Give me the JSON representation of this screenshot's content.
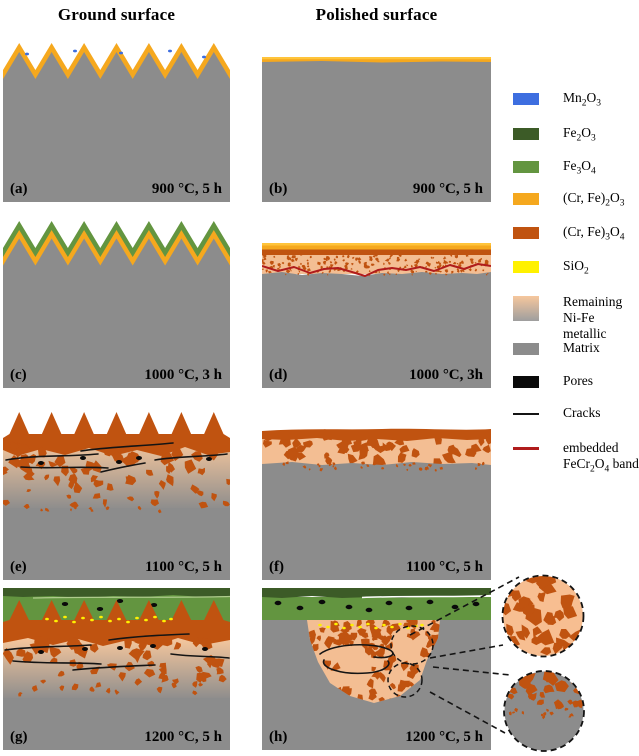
{
  "headers": {
    "left": "Ground surface",
    "right": "Polished surface"
  },
  "panels": [
    {
      "id": "a",
      "label": "(a)",
      "condition": "900 °C, 5 h"
    },
    {
      "id": "b",
      "label": "(b)",
      "condition": "900 °C, 5 h"
    },
    {
      "id": "c",
      "label": "(c)",
      "condition": "1000 °C, 3 h"
    },
    {
      "id": "d",
      "label": "(d)",
      "condition": "1000 °C, 3h"
    },
    {
      "id": "e",
      "label": "(e)",
      "condition": "1100 °C, 5 h"
    },
    {
      "id": "f",
      "label": "(f)",
      "condition": "1100 °C, 5 h"
    },
    {
      "id": "g",
      "label": "(g)",
      "condition": "1200 °C, 5 h"
    },
    {
      "id": "h",
      "label": "(h)",
      "condition": "1200 °C, 5 h"
    }
  ],
  "legend": {
    "items": [
      {
        "name": "Mn2O3",
        "label_html": "Mn<sub>2</sub>O<sub>3</sub>",
        "swatch": "solid",
        "color_key": "mn2o3"
      },
      {
        "name": "Fe2O3",
        "label_html": "Fe<sub>2</sub>O<sub>3</sub>",
        "swatch": "solid",
        "color_key": "fe2o3"
      },
      {
        "name": "Fe3O4",
        "label_html": "Fe<sub>3</sub>O<sub>4</sub>",
        "swatch": "solid",
        "color_key": "fe3o4"
      },
      {
        "name": "(Cr, Fe)2O3",
        "label_html": "(Cr, Fe)<sub>2</sub>O<sub>3</sub>",
        "swatch": "solid",
        "color_key": "crfe2o3"
      },
      {
        "name": "(Cr, Fe)3O4",
        "label_html": "(Cr, Fe)<sub>3</sub>O<sub>4</sub>",
        "swatch": "solid",
        "color_key": "crfe3o4"
      },
      {
        "name": "SiO2",
        "label_html": "SiO<sub>2</sub>",
        "swatch": "solid",
        "color_key": "sio2"
      },
      {
        "name": "Remaining Ni-Fe metallic",
        "label_html": "Remaining<br>Ni-Fe metallic",
        "swatch": "gradient",
        "color_key": "nife_light"
      },
      {
        "name": "Matrix",
        "label_html": "Matrix",
        "swatch": "solid",
        "color_key": "matrix"
      },
      {
        "name": "Pores",
        "label_html": "Pores",
        "swatch": "solid",
        "color_key": "pores"
      },
      {
        "name": "Cracks",
        "label_html": "Cracks",
        "swatch": "line",
        "color_key": "crack"
      },
      {
        "name": "embedded FeCr2O4 band",
        "label_html": "embedded<br>FeCr<sub>2</sub>O<sub>4</sub> band",
        "swatch": "line-thick",
        "color_key": "fecr2o4"
      }
    ]
  },
  "colors": {
    "mn2o3": "#3D6EE0",
    "fe2o3": "#3C5B27",
    "fe3o4": "#639540",
    "crfe2o3": "#F5A81E",
    "crfe2o3_light": "#FFC43B",
    "crfe3o4": "#C05310",
    "sio2": "#FFF100",
    "nife_light": "#F6C79D",
    "nife_band": "#F3BE93",
    "nife_gray": "#9E9E9E",
    "matrix": "#8C8C8C",
    "pores": "#0A0A0A",
    "crack": "#141414",
    "fecr2o4": "#B01C1C",
    "background": "#FFFFFF"
  }
}
